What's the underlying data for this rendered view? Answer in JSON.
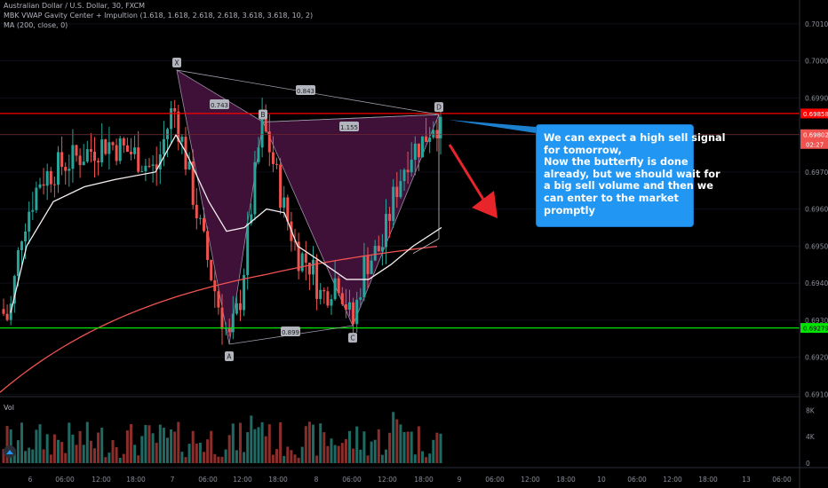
{
  "header": {
    "symbol_line": "Australian Dollar / U.S. Dollar, 30, FXCM",
    "indicator_line": "MBK VWAP Gavity Center + Impultion (1.618, 1.618, 2.618, 2.618, 3.618, 3.618, 10, 2)",
    "ma_line": "MA (200, close, 0)"
  },
  "volume_label": "Vol",
  "callout": {
    "lines": [
      "We can expect a high sell signal",
      "for tomorrow,",
      "Now the butterfly is done",
      "already, but we should wait for",
      "a big sell volume and then we",
      "can enter to the market",
      "promptly"
    ]
  },
  "colors": {
    "background": "#000000",
    "up_candle": "#26a69a",
    "down_candle": "#ef5350",
    "resistance_line": "#ff0000",
    "support_line": "#00e600",
    "ma_line": "#ef5350",
    "vwap_line": "#f5eef0",
    "pattern_fill": "#4a1442",
    "callout_bg": "#2196f3",
    "arrow": "#e8252b"
  },
  "chart_data": {
    "type": "candlestick",
    "price_axis": {
      "min": 0.691,
      "max": 0.7015,
      "ticks": [
        "0.70100",
        "0.70000",
        "0.69900",
        "0.69800",
        "0.69700",
        "0.69600",
        "0.69500",
        "0.69400",
        "0.69300",
        "0.69200",
        "0.69100"
      ]
    },
    "price_tags": [
      {
        "value": 0.69858,
        "label": "0.69858",
        "color": "#ff0000"
      },
      {
        "value": 0.69802,
        "label": "0.69802",
        "sub": "02:27",
        "color": "#ef5350"
      },
      {
        "value": 0.69279,
        "label": "0.69279",
        "color": "#00e600"
      }
    ],
    "time_axis": {
      "labels": [
        "6",
        "06:00",
        "12:00",
        "18:00",
        "7",
        "06:00",
        "12:00",
        "18:00",
        "8",
        "06:00",
        "12:00",
        "18:00",
        "9",
        "06:00",
        "12:00",
        "18:00",
        "10",
        "06:00",
        "12:00",
        "18:00",
        "13",
        "06:00"
      ]
    },
    "volume_axis": {
      "ticks": [
        "8K",
        "4K",
        "0"
      ]
    },
    "levels": [
      {
        "name": "resistance",
        "price": 0.69858
      },
      {
        "name": "support",
        "price": 0.69279
      }
    ],
    "pattern": {
      "name": "butterfly",
      "points": [
        {
          "label": "X",
          "price": 0.69975
        },
        {
          "label": "A",
          "price": 0.69235
        },
        {
          "label": "B",
          "price": 0.69835
        },
        {
          "label": "C",
          "price": 0.69285
        },
        {
          "label": "D",
          "price": 0.69855
        }
      ],
      "ratios": [
        {
          "label": "0.743",
          "between": "XB"
        },
        {
          "label": "0.843",
          "between": "XD"
        },
        {
          "label": "1.155",
          "between": "BD"
        },
        {
          "label": "0.899",
          "between": "AC"
        }
      ]
    }
  }
}
